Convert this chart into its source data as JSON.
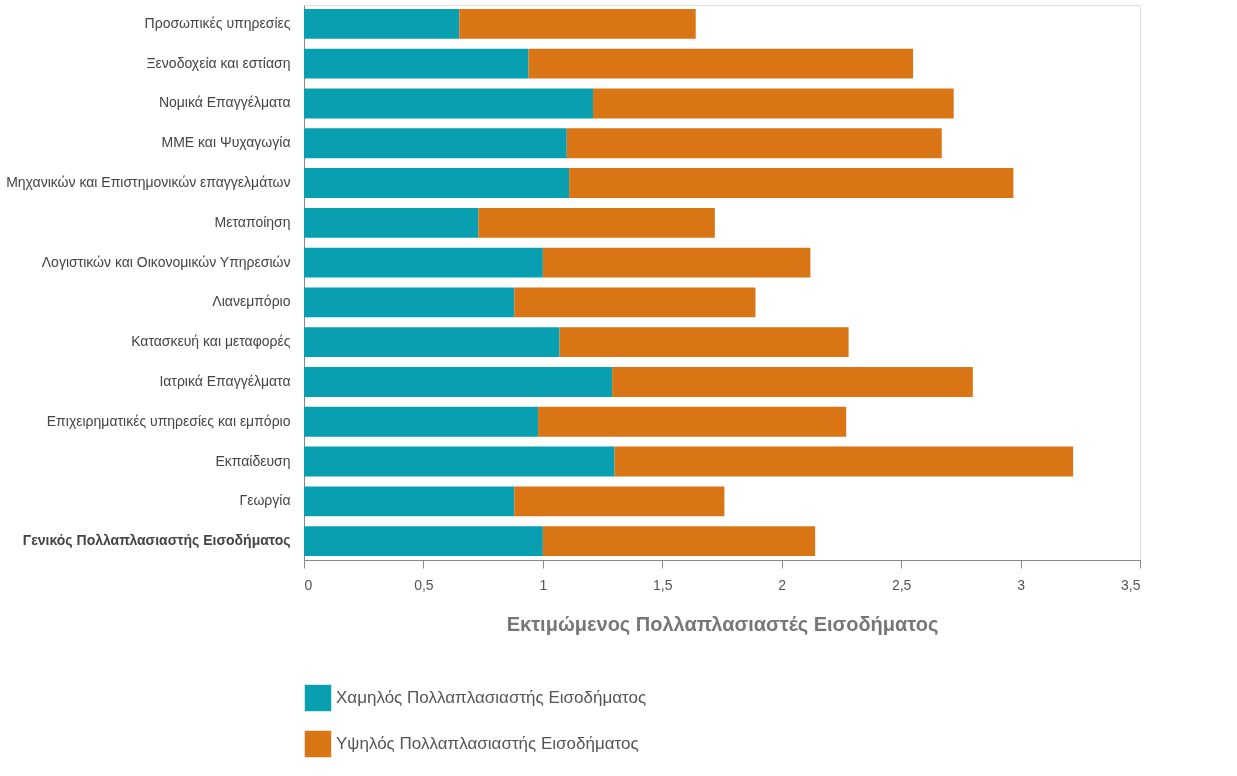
{
  "chart_data": {
    "type": "bar",
    "orientation": "horizontal",
    "stacked": true,
    "categories": [
      "Προσωπικές υπηρεσίες",
      "Ξενοδοχεία και εστίαση",
      "Νομικά Επαγγέλματα",
      "ΜΜΕ και Ψυχαγωγία",
      "Μηχανικών και Επιστημονικών επαγγελμάτων",
      "Μεταποίηση",
      "Λογιστικών και Οικονομικών Υπηρεσιών",
      "Λιανεμπόριο",
      "Κατασκευή και μεταφορές",
      "Ιατρικά Επαγγέλματα",
      "Επιχειρηματικές υπηρεσίες και εμπόριο",
      "Εκπαίδευση",
      "Γεωργία",
      "Γενικός Πολλαπλασιαστής Εισοδήματος"
    ],
    "series": [
      {
        "name": "Χαμηλός Πολλαπλασιαστής Εισοδήματος",
        "color": "#089fb0",
        "values": [
          0.65,
          0.94,
          1.21,
          1.1,
          1.11,
          0.73,
          1.0,
          0.88,
          1.07,
          1.29,
          0.98,
          1.3,
          0.88,
          1.0
        ]
      },
      {
        "name": "Υψηλός Πολλαπλασιαστής Εισοδήματος",
        "color": "#d97514",
        "values": [
          0.99,
          1.61,
          1.51,
          1.57,
          1.86,
          0.99,
          1.12,
          1.01,
          1.21,
          1.51,
          1.29,
          1.92,
          0.88,
          1.14
        ]
      }
    ],
    "xlabel": "Εκτιμώμενος Πολλαπλασιαστές Εισοδήματος",
    "xlim": [
      0,
      3.5
    ],
    "xticks": [
      0,
      {
        "value": 0.5,
        "label": "0,5"
      },
      1,
      {
        "value": 1.5,
        "label": "1,5"
      },
      2,
      {
        "value": 2.5,
        "label": "2,5"
      },
      3,
      {
        "value": 3.5,
        "label": "3,5"
      }
    ],
    "grid": false,
    "legend": "bottom"
  }
}
